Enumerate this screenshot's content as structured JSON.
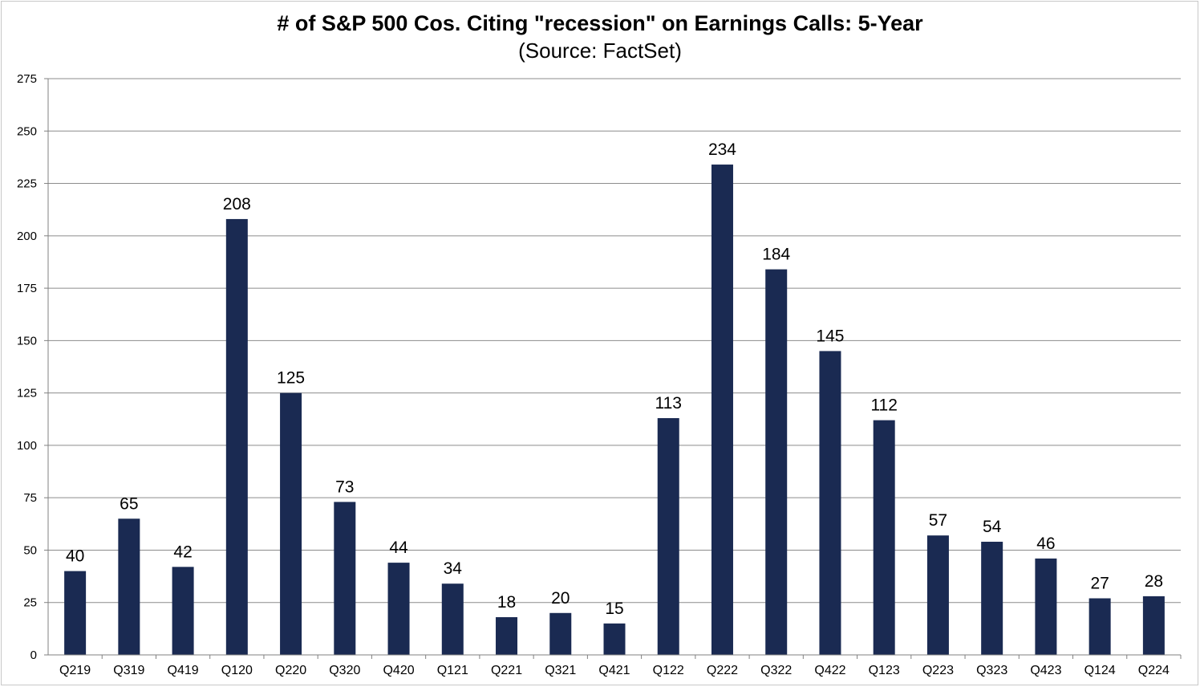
{
  "chart_data": {
    "type": "bar",
    "title": "# of S&P 500 Cos. Citing \"recession\" on Earnings Calls: 5-Year",
    "subtitle": "(Source: FactSet)",
    "xlabel": "",
    "ylabel": "",
    "categories": [
      "Q219",
      "Q319",
      "Q419",
      "Q120",
      "Q220",
      "Q320",
      "Q420",
      "Q121",
      "Q221",
      "Q321",
      "Q421",
      "Q122",
      "Q222",
      "Q322",
      "Q422",
      "Q123",
      "Q223",
      "Q323",
      "Q423",
      "Q124",
      "Q224"
    ],
    "values": [
      40,
      65,
      42,
      208,
      125,
      73,
      44,
      34,
      18,
      20,
      15,
      113,
      234,
      184,
      145,
      112,
      57,
      54,
      46,
      27,
      28
    ],
    "ylim": [
      0,
      275
    ],
    "yticks": [
      0,
      25,
      50,
      75,
      100,
      125,
      150,
      175,
      200,
      225,
      250,
      275
    ],
    "grid": true,
    "legend": "none",
    "data_labels": true,
    "bar_color": "#1a2a52",
    "grid_color": "#8c8c8c"
  }
}
